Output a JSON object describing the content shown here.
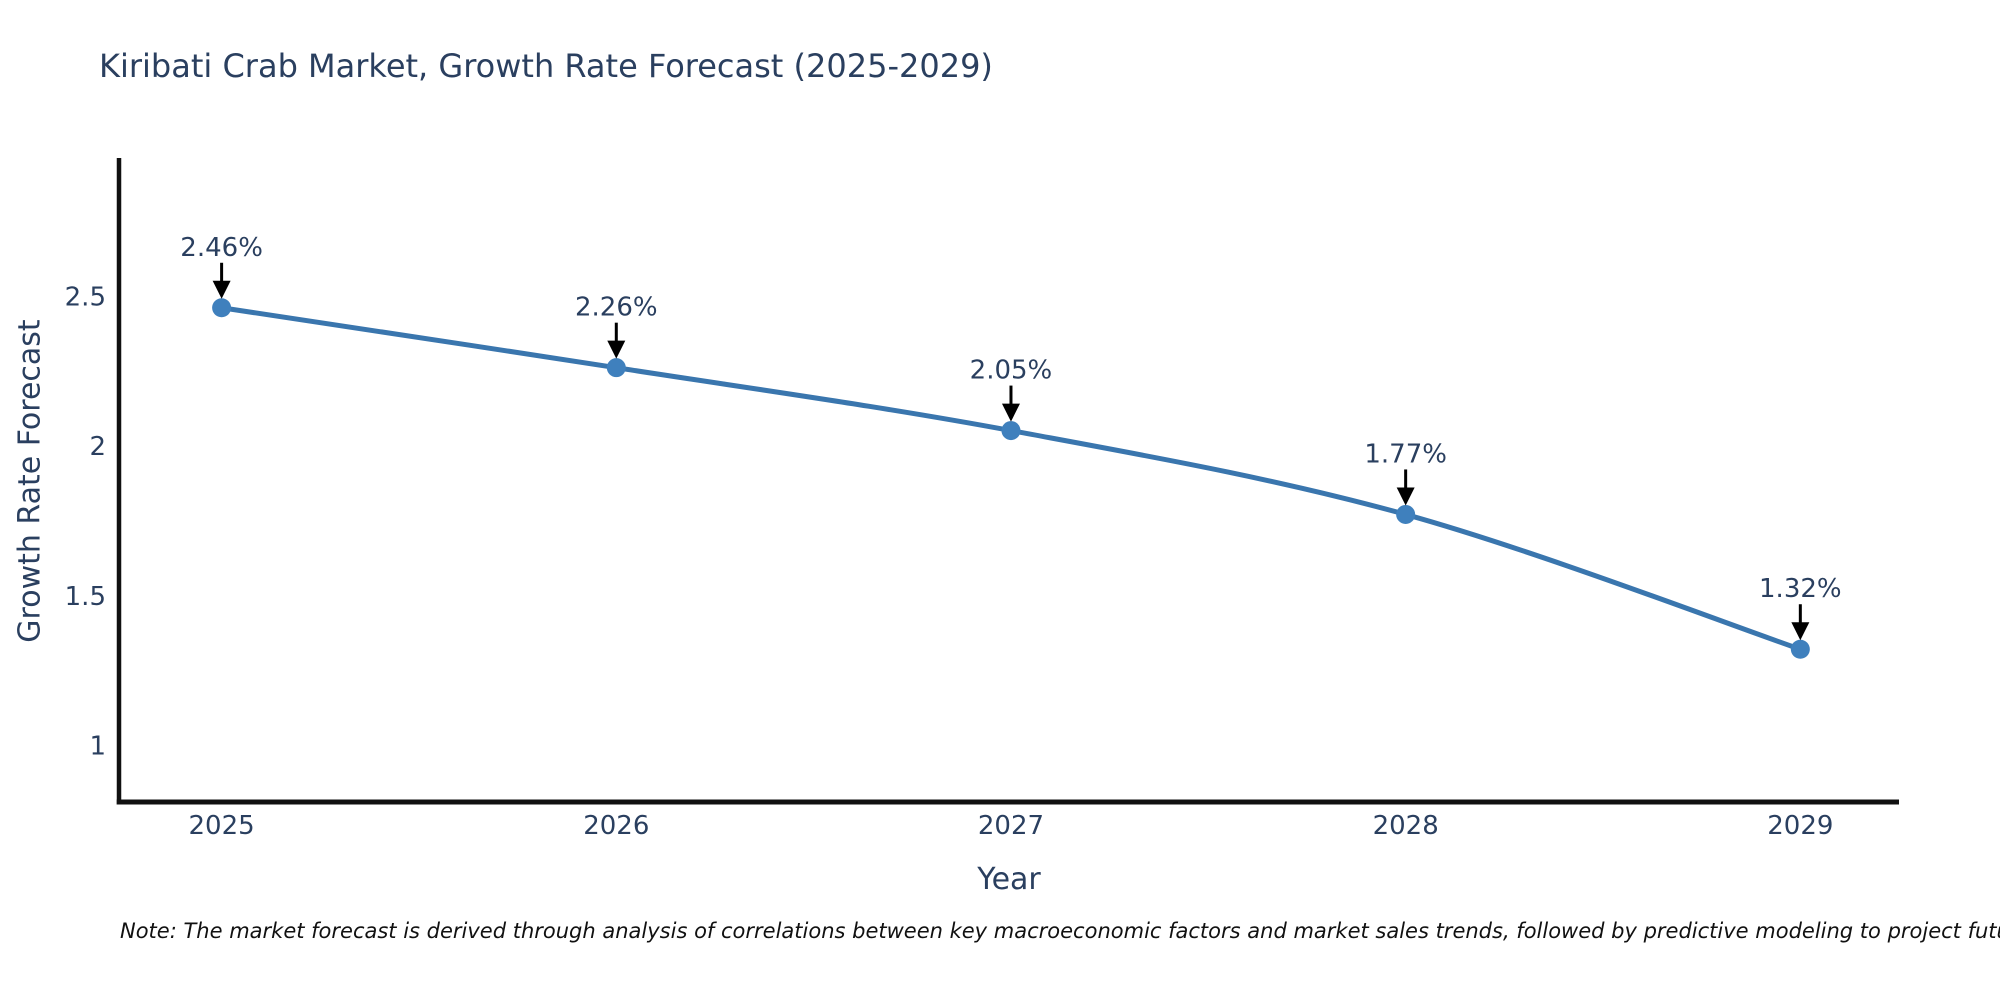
{
  "page": {
    "background": "#ffffff"
  },
  "chart_data": {
    "type": "line",
    "title": "Kiribati Crab Market, Growth Rate Forecast (2025-2029)",
    "xlabel": "Year",
    "ylabel": "Growth Rate Forecast",
    "x": [
      2025,
      2026,
      2027,
      2028,
      2029
    ],
    "values": [
      2.46,
      2.26,
      2.05,
      1.77,
      1.32
    ],
    "point_labels": [
      "2.46%",
      "2.26%",
      "2.05%",
      "1.77%",
      "1.32%"
    ],
    "xtick_labels": [
      "2025",
      "2026",
      "2027",
      "2028",
      "2029"
    ],
    "yticks": [
      1,
      1.5,
      2,
      2.5
    ],
    "ytick_labels": [
      "1",
      "1.5",
      "2",
      "2.5"
    ],
    "xlim": [
      2024.74,
      2029.25
    ],
    "ylim": [
      0.81,
      2.96
    ],
    "grid": false,
    "legend": "none",
    "line_shape": "spline",
    "colors": {
      "line": "#3a76ae",
      "marker": "#3f80bd",
      "arrow": "#000000",
      "text": "#2a3f5f",
      "axis": "#111111"
    }
  },
  "note": "Note: The market forecast is derived through analysis of correlations between key macroeconomic factors and market sales trends, followed by predictive modeling to project future sales"
}
